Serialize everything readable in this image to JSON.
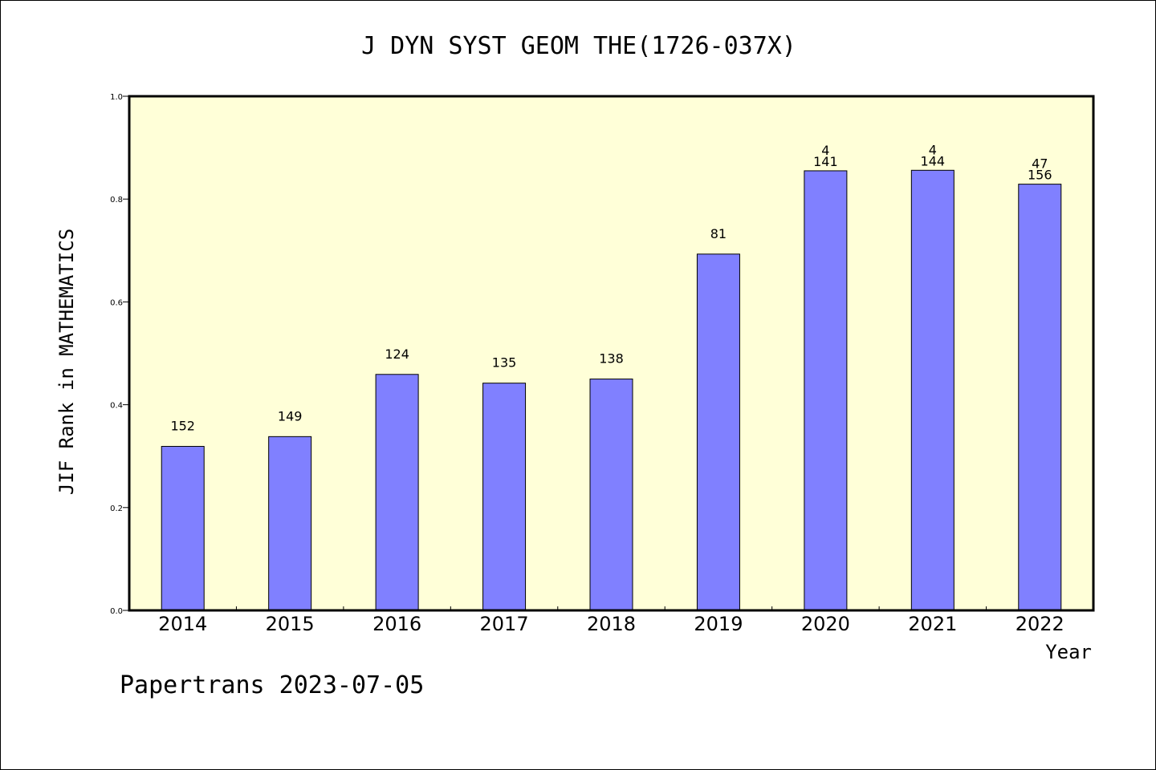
{
  "chart_data": {
    "type": "bar",
    "title": "J DYN SYST GEOM THE(1726-037X)",
    "xlabel": "Year",
    "ylabel": "JIF Rank in MATHEMATICS",
    "ylim": [
      0,
      1.0
    ],
    "yticks": [
      "0.0",
      "0.2",
      "0.4",
      "0.6",
      "0.8",
      "1.0"
    ],
    "categories": [
      "2014",
      "2015",
      "2016",
      "2017",
      "2018",
      "2019",
      "2020",
      "2021",
      "2022"
    ],
    "values": [
      0.319,
      0.338,
      0.459,
      0.442,
      0.45,
      0.693,
      0.855,
      0.856,
      0.829
    ],
    "label_totals": [
      "152",
      "149",
      "124",
      "135",
      "138",
      "81",
      "141",
      "144",
      "156"
    ],
    "label_extra": [
      "",
      "",
      "",
      "",
      "",
      "",
      "4",
      "4",
      "47"
    ],
    "plot_background": "#ffffd8",
    "bar_color": "#8080ff",
    "grid": false,
    "legend": "none"
  },
  "footer": "Papertrans 2023-07-05"
}
